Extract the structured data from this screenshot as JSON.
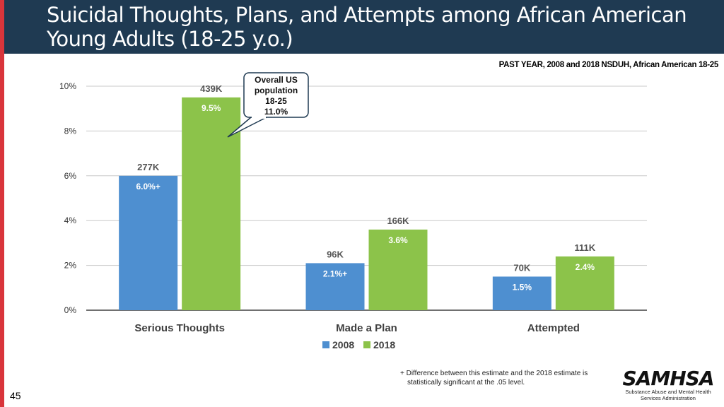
{
  "header": {
    "title": "Suicidal Thoughts, Plans, and Attempts among African American Young Adults (18-25 y.o.)"
  },
  "subtitle": "PAST YEAR, 2008 and 2018 NSDUH, African American 18-25",
  "colors": {
    "header_bg": "#1f3a52",
    "left_accent": "#d9353b",
    "series_2008": "#4e8fd0",
    "series_2018": "#8cc34a",
    "gridline": "#c8c8c8",
    "callout_border": "#1f3a52"
  },
  "callout": {
    "lines": [
      "Overall US",
      "population",
      "18-25",
      "11.0%"
    ]
  },
  "chart_data": {
    "type": "bar",
    "categories": [
      "Serious Thoughts",
      "Made a Plan",
      "Attempted"
    ],
    "series": [
      {
        "name": "2008",
        "values": [
          6.0,
          2.1,
          1.5
        ],
        "value_labels": [
          "6.0%",
          "2.1%",
          "1.5%"
        ],
        "markers": [
          "+",
          "+",
          ""
        ],
        "count_labels": [
          "277K",
          "96K",
          "70K"
        ]
      },
      {
        "name": "2018",
        "values": [
          9.5,
          3.6,
          2.4
        ],
        "value_labels": [
          "9.5%",
          "3.6%",
          "2.4%"
        ],
        "markers": [
          "",
          "",
          ""
        ],
        "count_labels": [
          "439K",
          "166K",
          "111K"
        ]
      }
    ],
    "ylim": [
      0,
      10
    ],
    "yticks": [
      0,
      2,
      4,
      6,
      8,
      10
    ],
    "ytick_labels": [
      "0%",
      "2%",
      "4%",
      "6%",
      "8%",
      "10%"
    ],
    "xlabel": "",
    "ylabel": "",
    "grid": true,
    "legend": "bottom-center"
  },
  "footnote": {
    "line1": "+ Difference between this estimate and the 2018 estimate is",
    "line2": "statistically significant at the .05 level."
  },
  "page_number": "45",
  "logo": {
    "mark": "SAMHSA",
    "sub1": "Substance Abuse and Mental Health",
    "sub2": "Services Administration"
  }
}
